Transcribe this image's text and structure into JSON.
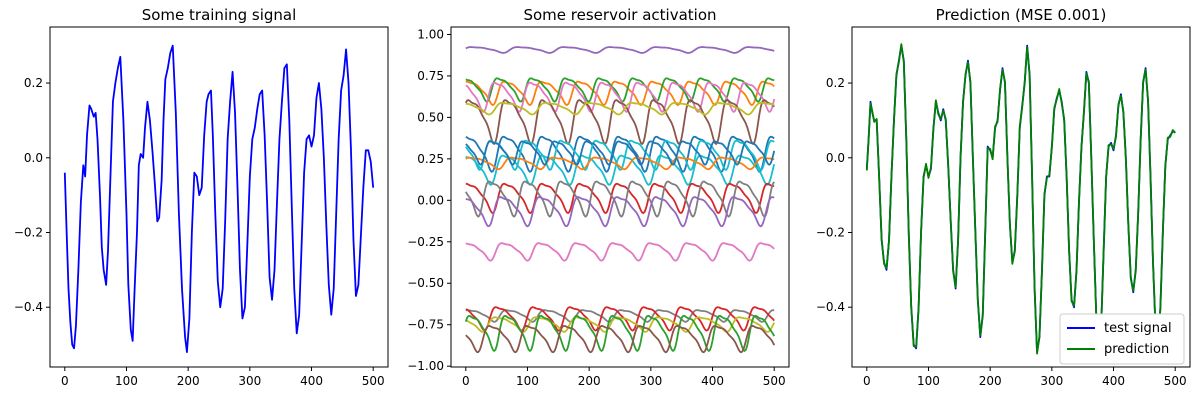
{
  "chart_data": [
    {
      "type": "line",
      "title": "Some training signal",
      "xlabel": "",
      "ylabel": "",
      "xlim": [
        -24,
        524
      ],
      "ylim": [
        -0.56,
        0.35
      ],
      "xticks": [
        0,
        100,
        200,
        300,
        400,
        500
      ],
      "yticks": [
        -0.4,
        -0.2,
        0.0,
        0.2
      ],
      "ytick_labels": [
        "−0.4",
        "−0.2",
        "0.0",
        "0.2"
      ],
      "grid": false,
      "series": [
        {
          "color": "#0000ff",
          "x": [
            0,
            3,
            6,
            9,
            12,
            15,
            18,
            22,
            26,
            30,
            33,
            36,
            40,
            43,
            47,
            50,
            53,
            57,
            60,
            63,
            67,
            70,
            74,
            78,
            82,
            86,
            90,
            95,
            100,
            103,
            107,
            110,
            113,
            117,
            120,
            123,
            127,
            130,
            134,
            138,
            142,
            146,
            150,
            153,
            157,
            160,
            163,
            167,
            171,
            175,
            180,
            185,
            190,
            195,
            198,
            202,
            206,
            210,
            214,
            218,
            222,
            226,
            230,
            233,
            237,
            240,
            244,
            248,
            252,
            256,
            260,
            264,
            268,
            272,
            276,
            280,
            284,
            288,
            292,
            296,
            300,
            304,
            308,
            312,
            316,
            320,
            324,
            328,
            332,
            336,
            340,
            344,
            348,
            352,
            356,
            360,
            364,
            368,
            372,
            376,
            380,
            384,
            388,
            392,
            396,
            400,
            404,
            408,
            412,
            416,
            420,
            424,
            428,
            432,
            436,
            440,
            444,
            448,
            452,
            456,
            460,
            464,
            468,
            472,
            476,
            480,
            484,
            488,
            492,
            496,
            500
          ],
          "y": [
            -0.04,
            -0.2,
            -0.35,
            -0.44,
            -0.5,
            -0.51,
            -0.45,
            -0.3,
            -0.12,
            -0.02,
            -0.05,
            0.06,
            0.14,
            0.13,
            0.11,
            0.12,
            0.05,
            -0.1,
            -0.24,
            -0.3,
            -0.34,
            -0.25,
            -0.05,
            0.15,
            0.2,
            0.24,
            0.27,
            0.1,
            -0.15,
            -0.34,
            -0.46,
            -0.49,
            -0.36,
            -0.2,
            -0.02,
            0.01,
            0.0,
            0.08,
            0.15,
            0.1,
            0.02,
            -0.07,
            -0.17,
            -0.16,
            -0.06,
            0.1,
            0.21,
            0.24,
            0.28,
            0.3,
            0.12,
            -0.15,
            -0.35,
            -0.48,
            -0.52,
            -0.43,
            -0.2,
            -0.04,
            -0.05,
            -0.1,
            -0.08,
            0.06,
            0.15,
            0.17,
            0.18,
            0.06,
            -0.15,
            -0.33,
            -0.4,
            -0.35,
            -0.17,
            0.05,
            0.15,
            0.23,
            0.12,
            -0.08,
            -0.3,
            -0.43,
            -0.4,
            -0.23,
            -0.05,
            0.05,
            0.08,
            0.13,
            0.17,
            0.18,
            0.06,
            -0.12,
            -0.32,
            -0.38,
            -0.3,
            -0.12,
            0.05,
            0.15,
            0.24,
            0.25,
            0.1,
            -0.13,
            -0.35,
            -0.47,
            -0.42,
            -0.23,
            -0.04,
            0.05,
            0.06,
            0.03,
            0.06,
            0.16,
            0.2,
            0.13,
            0.0,
            -0.18,
            -0.34,
            -0.42,
            -0.35,
            -0.15,
            0.05,
            0.18,
            0.22,
            0.29,
            0.2,
            0.02,
            -0.22,
            -0.37,
            -0.34,
            -0.21,
            -0.08,
            0.02,
            0.02,
            -0.01,
            -0.08
          ],
          "note_x_dense": true
        }
      ]
    },
    {
      "type": "line",
      "title": "Some reservoir activation",
      "xlabel": "",
      "ylabel": "",
      "xlim": [
        -24,
        524
      ],
      "ylim": [
        -1.005,
        1.045
      ],
      "xticks": [
        0,
        100,
        200,
        300,
        400,
        500
      ],
      "yticks": [
        -1.0,
        -0.75,
        -0.5,
        -0.25,
        0.0,
        0.25,
        0.5,
        0.75,
        1.0
      ],
      "ytick_labels": [
        "−1.00",
        "−0.75",
        "−0.50",
        "−0.25",
        "0.00",
        "0.25",
        "0.50",
        "0.75",
        "1.00"
      ],
      "grid": false,
      "series": [
        {
          "color": "#9467bd",
          "base": 0.91,
          "amp": 0.02,
          "period": 75,
          "phase": 0.0
        },
        {
          "color": "#ff7f0e",
          "base": 0.66,
          "amp": 0.08,
          "period": 60,
          "phase": 0.5
        },
        {
          "color": "#2ca02c",
          "base": 0.68,
          "amp": 0.08,
          "period": 55,
          "phase": 1.2
        },
        {
          "color": "#e377c2",
          "base": 0.64,
          "amp": 0.1,
          "period": 58,
          "phase": 2.0
        },
        {
          "color": "#8c564b",
          "base": 0.5,
          "amp": 0.15,
          "period": 60,
          "phase": 0.3
        },
        {
          "color": "#bcbd22",
          "base": 0.56,
          "amp": 0.04,
          "period": 70,
          "phase": 1.7
        },
        {
          "color": "#1f77b4",
          "base": 0.3,
          "amp": 0.12,
          "period": 62,
          "phase": 0.8
        },
        {
          "color": "#17becf",
          "base": 0.29,
          "amp": 0.1,
          "period": 57,
          "phase": 2.6
        },
        {
          "color": "#17becf",
          "base": 0.2,
          "amp": 0.1,
          "period": 64,
          "phase": 1.1
        },
        {
          "color": "#ff7f0e",
          "base": 0.23,
          "amp": 0.04,
          "period": 68,
          "phase": 0.2
        },
        {
          "color": "#1f77b4",
          "base": 0.3,
          "amp": 0.08,
          "period": 52,
          "phase": 2.2
        },
        {
          "color": "#d62728",
          "base": 0.03,
          "amp": 0.1,
          "period": 61,
          "phase": 0.6
        },
        {
          "color": "#7f7f7f",
          "base": 0.03,
          "amp": 0.12,
          "period": 58,
          "phase": 2.9
        },
        {
          "color": "#9467bd",
          "base": -0.05,
          "amp": 0.1,
          "period": 63,
          "phase": 1.4
        },
        {
          "color": "#e377c2",
          "base": -0.3,
          "amp": 0.06,
          "period": 60,
          "phase": 0.9
        },
        {
          "color": "#7f7f7f",
          "base": -0.69,
          "amp": 0.04,
          "period": 62,
          "phase": 0.4
        },
        {
          "color": "#d62728",
          "base": -0.7,
          "amp": 0.08,
          "period": 60,
          "phase": 1.9
        },
        {
          "color": "#bcbd22",
          "base": -0.74,
          "amp": 0.05,
          "period": 66,
          "phase": 2.5
        },
        {
          "color": "#2ca02c",
          "base": -0.78,
          "amp": 0.12,
          "period": 58,
          "phase": 0.1
        },
        {
          "color": "#8c564b",
          "base": -0.82,
          "amp": 0.09,
          "period": 61,
          "phase": 3.1
        }
      ]
    },
    {
      "type": "line",
      "title": "Prediction (MSE 0.001)",
      "xlabel": "",
      "ylabel": "",
      "xlim": [
        -24,
        524
      ],
      "ylim": [
        -0.56,
        0.35
      ],
      "xticks": [
        0,
        100,
        200,
        300,
        400,
        500
      ],
      "yticks": [
        -0.4,
        -0.2,
        0.0,
        0.2
      ],
      "ytick_labels": [
        "−0.4",
        "−0.2",
        "0.0",
        "0.2"
      ],
      "grid": false,
      "legend": "lower right",
      "series": [
        {
          "name": "test signal",
          "color": "#0000ff",
          "x": [
            0,
            3,
            6,
            9,
            12,
            16,
            20,
            24,
            28,
            32,
            36,
            40,
            44,
            48,
            52,
            56,
            60,
            64,
            68,
            72,
            76,
            80,
            84,
            88,
            92,
            96,
            100,
            104,
            108,
            112,
            116,
            120,
            124,
            128,
            132,
            136,
            140,
            144,
            148,
            152,
            156,
            160,
            164,
            168,
            172,
            176,
            180,
            184,
            188,
            192,
            196,
            200,
            204,
            208,
            212,
            216,
            220,
            224,
            228,
            232,
            236,
            240,
            244,
            248,
            252,
            256,
            260,
            264,
            268,
            272,
            276,
            280,
            284,
            288,
            292,
            296,
            300,
            304,
            308,
            312,
            316,
            320,
            324,
            328,
            332,
            336,
            340,
            344,
            348,
            352,
            356,
            360,
            364,
            368,
            372,
            376,
            380,
            384,
            388,
            392,
            396,
            400,
            404,
            408,
            412,
            416,
            420,
            424,
            428,
            432,
            436,
            440,
            444,
            448,
            452,
            456,
            460,
            464,
            468,
            472,
            476,
            480,
            484,
            488,
            492,
            496,
            500
          ],
          "y": [
            -0.03,
            0.05,
            0.15,
            0.12,
            0.1,
            0.1,
            -0.05,
            -0.22,
            -0.28,
            -0.3,
            -0.22,
            -0.05,
            0.1,
            0.22,
            0.26,
            0.3,
            0.26,
            0.05,
            -0.2,
            -0.4,
            -0.5,
            -0.51,
            -0.4,
            -0.2,
            -0.05,
            -0.02,
            -0.05,
            -0.03,
            0.08,
            0.15,
            0.12,
            0.1,
            0.13,
            0.1,
            -0.02,
            -0.17,
            -0.3,
            -0.35,
            -0.22,
            0.0,
            0.15,
            0.22,
            0.26,
            0.2,
            0.0,
            -0.2,
            -0.38,
            -0.48,
            -0.42,
            -0.2,
            0.03,
            0.02,
            0.0,
            0.08,
            0.1,
            0.18,
            0.24,
            0.2,
            0.0,
            -0.18,
            -0.28,
            -0.25,
            -0.1,
            0.08,
            0.14,
            0.2,
            0.3,
            0.22,
            -0.05,
            -0.35,
            -0.52,
            -0.48,
            -0.3,
            -0.1,
            -0.05,
            -0.05,
            0.03,
            0.13,
            0.16,
            0.18,
            0.15,
            0.1,
            -0.05,
            -0.25,
            -0.38,
            -0.4,
            -0.3,
            -0.12,
            0.03,
            0.12,
            0.23,
            0.2,
            0.0,
            -0.22,
            -0.42,
            -0.52,
            -0.45,
            -0.25,
            -0.05,
            0.03,
            0.04,
            0.02,
            0.06,
            0.14,
            0.17,
            0.12,
            0.0,
            -0.18,
            -0.32,
            -0.36,
            -0.3,
            -0.15,
            0.05,
            0.2,
            0.24,
            0.15,
            -0.05,
            -0.28,
            -0.45,
            -0.5,
            -0.4,
            -0.2,
            -0.02,
            0.05,
            0.06,
            0.07,
            0.07
          ]
        },
        {
          "name": "prediction",
          "color": "#008000",
          "offset": 0.004
        }
      ]
    }
  ]
}
